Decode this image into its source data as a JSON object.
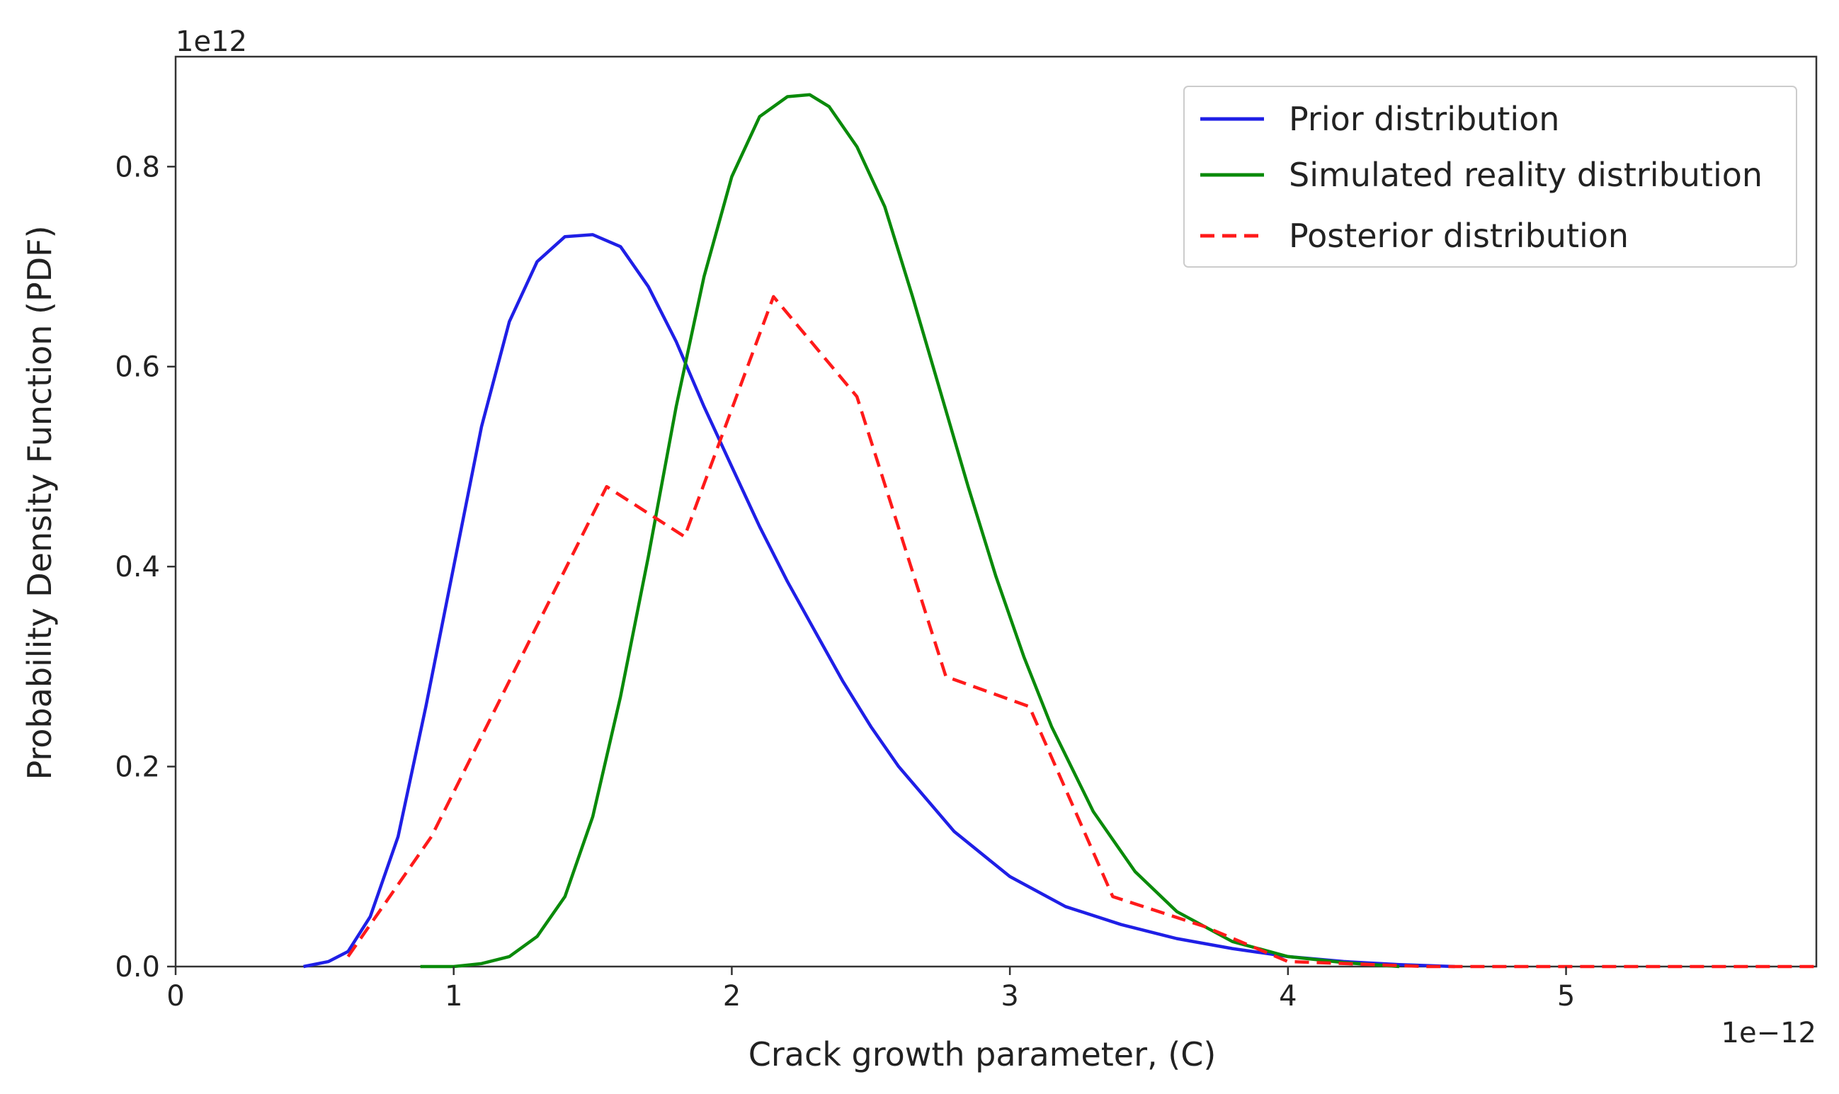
{
  "chart_data": {
    "type": "line",
    "title": "",
    "xlabel": "Crack growth parameter, (C)",
    "ylabel": "Probability Density Function (PDF)",
    "x_offset_label": "1e−12",
    "y_offset_label": "1e12",
    "xlim": [
      0,
      5.9
    ],
    "ylim": [
      0,
      0.91
    ],
    "x_ticks": [
      0,
      1,
      2,
      3,
      4,
      5
    ],
    "x_tick_labels": [
      "0",
      "1",
      "2",
      "3",
      "4",
      "5"
    ],
    "y_ticks": [
      0.0,
      0.2,
      0.4,
      0.6,
      0.8
    ],
    "y_tick_labels": [
      "0.0",
      "0.2",
      "0.4",
      "0.6",
      "0.8"
    ],
    "grid": false,
    "legend_position": "top-right",
    "series": [
      {
        "name": "Prior distribution",
        "color": "#1f1fe6",
        "dash": "solid",
        "x": [
          0.46,
          0.55,
          0.62,
          0.7,
          0.8,
          0.9,
          1.0,
          1.1,
          1.2,
          1.3,
          1.4,
          1.5,
          1.6,
          1.7,
          1.8,
          1.9,
          2.0,
          2.1,
          2.2,
          2.3,
          2.4,
          2.5,
          2.6,
          2.8,
          3.0,
          3.2,
          3.4,
          3.6,
          3.8,
          4.0,
          4.2,
          4.4,
          4.6
        ],
        "values": [
          0.0,
          0.005,
          0.015,
          0.05,
          0.13,
          0.26,
          0.4,
          0.54,
          0.645,
          0.705,
          0.73,
          0.732,
          0.72,
          0.68,
          0.625,
          0.56,
          0.5,
          0.44,
          0.385,
          0.335,
          0.285,
          0.24,
          0.2,
          0.135,
          0.09,
          0.06,
          0.042,
          0.028,
          0.018,
          0.01,
          0.005,
          0.002,
          0.0
        ]
      },
      {
        "name": "Simulated reality distribution",
        "color": "#0a8a0a",
        "dash": "solid",
        "x": [
          0.88,
          1.0,
          1.1,
          1.2,
          1.3,
          1.4,
          1.5,
          1.6,
          1.7,
          1.8,
          1.9,
          2.0,
          2.1,
          2.2,
          2.28,
          2.35,
          2.45,
          2.55,
          2.65,
          2.75,
          2.85,
          2.95,
          3.05,
          3.15,
          3.3,
          3.45,
          3.6,
          3.8,
          4.0,
          4.2,
          4.4
        ],
        "values": [
          0.0,
          0.0,
          0.003,
          0.01,
          0.03,
          0.07,
          0.15,
          0.27,
          0.41,
          0.56,
          0.69,
          0.79,
          0.85,
          0.87,
          0.872,
          0.86,
          0.82,
          0.76,
          0.67,
          0.575,
          0.48,
          0.39,
          0.31,
          0.24,
          0.155,
          0.095,
          0.055,
          0.025,
          0.01,
          0.004,
          0.0
        ]
      },
      {
        "name": "Posterior distribution",
        "color": "#ff1a1a",
        "dash": "dashed",
        "x": [
          0.62,
          0.92,
          1.55,
          1.83,
          2.15,
          2.45,
          2.77,
          3.07,
          3.37,
          3.7,
          4.0,
          4.5,
          5.0,
          5.5,
          5.9
        ],
        "values": [
          0.01,
          0.13,
          0.48,
          0.43,
          0.67,
          0.57,
          0.29,
          0.26,
          0.07,
          0.04,
          0.005,
          0.0,
          0.0,
          0.0,
          0.0
        ]
      }
    ]
  }
}
